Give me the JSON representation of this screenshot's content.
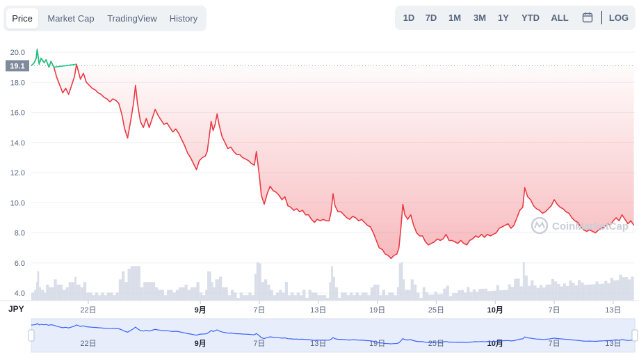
{
  "tabs": [
    {
      "label": "Price",
      "active": true
    },
    {
      "label": "Market Cap",
      "active": false
    },
    {
      "label": "TradingView",
      "active": false
    },
    {
      "label": "History",
      "active": false
    }
  ],
  "ranges": [
    "1D",
    "7D",
    "1M",
    "3M",
    "1Y",
    "YTD",
    "ALL"
  ],
  "calendar_icon": "calendar-icon",
  "log_label": "LOG",
  "currency_label": "JPY",
  "watermark": "CoinMarketCap",
  "colors": {
    "up": "#16c784",
    "down": "#ea3943",
    "fill_top": "#f6b7ba",
    "volume": "#cfd6e4",
    "navigator_line": "#3861fb",
    "navigator_bg": "#e8edfc"
  },
  "chart_data": {
    "type": "line",
    "open_price": 19.1,
    "y_ticks": [
      4.0,
      6.0,
      8.0,
      10.0,
      12.0,
      14.0,
      16.0,
      18.0,
      20.0
    ],
    "ylim": [
      3.5,
      20.6
    ],
    "x_ticks": [
      {
        "label": "22日",
        "day": 5.8
      },
      {
        "label": "9月",
        "day": 17.2,
        "bold": true
      },
      {
        "label": "7日",
        "day": 23.2
      },
      {
        "label": "13日",
        "day": 29.2
      },
      {
        "label": "19日",
        "day": 35.2
      },
      {
        "label": "25日",
        "day": 41.2
      },
      {
        "label": "10月",
        "day": 47.2,
        "bold": true
      },
      {
        "label": "7日",
        "day": 53.2
      },
      {
        "label": "13日",
        "day": 59.2
      }
    ],
    "xlim": [
      0,
      61.4
    ],
    "series": [
      {
        "values": [
          [
            0.0,
            19.1
          ],
          [
            0.3,
            19.3
          ],
          [
            0.5,
            19.6
          ],
          [
            0.6,
            20.2
          ],
          [
            0.8,
            19.2
          ],
          [
            1.0,
            19.6
          ],
          [
            1.3,
            19.3
          ],
          [
            1.5,
            19.5
          ],
          [
            1.8,
            19.0
          ],
          [
            2.0,
            19.4
          ],
          [
            2.3,
            19.0
          ],
          [
            2.6,
            18.3
          ],
          [
            2.9,
            17.8
          ],
          [
            3.2,
            17.3
          ],
          [
            3.5,
            17.6
          ],
          [
            3.8,
            17.2
          ],
          [
            4.1,
            17.8
          ],
          [
            4.4,
            18.4
          ],
          [
            4.6,
            19.2
          ],
          [
            4.8,
            18.7
          ],
          [
            5.0,
            18.2
          ],
          [
            5.3,
            18.6
          ],
          [
            5.6,
            18.0
          ],
          [
            5.9,
            17.8
          ],
          [
            6.2,
            17.6
          ],
          [
            6.5,
            17.5
          ],
          [
            6.8,
            17.3
          ],
          [
            7.1,
            17.2
          ],
          [
            7.4,
            17.0
          ],
          [
            7.7,
            16.9
          ],
          [
            8.0,
            16.7
          ],
          [
            8.3,
            16.9
          ],
          [
            8.6,
            16.8
          ],
          [
            8.9,
            16.6
          ],
          [
            9.2,
            15.9
          ],
          [
            9.5,
            14.9
          ],
          [
            9.8,
            14.3
          ],
          [
            10.1,
            15.4
          ],
          [
            10.4,
            16.6
          ],
          [
            10.6,
            17.8
          ],
          [
            10.8,
            16.6
          ],
          [
            11.1,
            15.4
          ],
          [
            11.4,
            15.0
          ],
          [
            11.7,
            15.6
          ],
          [
            12.0,
            15.0
          ],
          [
            12.3,
            15.6
          ],
          [
            12.6,
            16.2
          ],
          [
            12.9,
            15.8
          ],
          [
            13.2,
            15.5
          ],
          [
            13.5,
            15.2
          ],
          [
            13.8,
            15.3
          ],
          [
            14.1,
            15.0
          ],
          [
            14.4,
            14.7
          ],
          [
            14.7,
            14.9
          ],
          [
            15.0,
            14.6
          ],
          [
            15.3,
            14.2
          ],
          [
            15.6,
            13.8
          ],
          [
            15.9,
            13.3
          ],
          [
            16.2,
            13.0
          ],
          [
            16.5,
            12.6
          ],
          [
            16.8,
            12.2
          ],
          [
            17.1,
            12.8
          ],
          [
            17.4,
            13.0
          ],
          [
            17.7,
            13.1
          ],
          [
            17.9,
            13.4
          ],
          [
            18.1,
            14.4
          ],
          [
            18.3,
            15.4
          ],
          [
            18.5,
            14.8
          ],
          [
            18.7,
            15.2
          ],
          [
            18.9,
            15.9
          ],
          [
            19.1,
            15.2
          ],
          [
            19.4,
            14.4
          ],
          [
            19.7,
            14.0
          ],
          [
            20.0,
            13.6
          ],
          [
            20.3,
            13.7
          ],
          [
            20.6,
            13.4
          ],
          [
            20.9,
            13.2
          ],
          [
            21.2,
            13.2
          ],
          [
            21.5,
            13.0
          ],
          [
            21.8,
            12.9
          ],
          [
            22.1,
            12.8
          ],
          [
            22.4,
            12.6
          ],
          [
            22.7,
            12.5
          ],
          [
            22.9,
            13.4
          ],
          [
            23.2,
            11.8
          ],
          [
            23.4,
            10.5
          ],
          [
            23.7,
            9.9
          ],
          [
            24.0,
            10.6
          ],
          [
            24.3,
            11.1
          ],
          [
            24.6,
            10.8
          ],
          [
            24.9,
            10.7
          ],
          [
            25.2,
            10.5
          ],
          [
            25.5,
            10.2
          ],
          [
            25.8,
            10.4
          ],
          [
            26.1,
            9.8
          ],
          [
            26.4,
            9.7
          ],
          [
            26.7,
            9.5
          ],
          [
            27.0,
            9.6
          ],
          [
            27.3,
            9.4
          ],
          [
            27.6,
            9.5
          ],
          [
            27.9,
            9.2
          ],
          [
            28.2,
            9.2
          ],
          [
            28.5,
            8.9
          ],
          [
            28.8,
            8.7
          ],
          [
            29.1,
            8.9
          ],
          [
            29.4,
            8.8
          ],
          [
            29.7,
            8.9
          ],
          [
            30.0,
            8.8
          ],
          [
            30.3,
            8.8
          ],
          [
            30.5,
            9.4
          ],
          [
            30.7,
            10.6
          ],
          [
            30.9,
            9.8
          ],
          [
            31.2,
            9.4
          ],
          [
            31.5,
            9.4
          ],
          [
            31.8,
            9.2
          ],
          [
            32.1,
            9.0
          ],
          [
            32.4,
            8.9
          ],
          [
            32.7,
            9.1
          ],
          [
            33.0,
            9.0
          ],
          [
            33.3,
            8.8
          ],
          [
            33.6,
            8.9
          ],
          [
            33.9,
            8.7
          ],
          [
            34.2,
            8.5
          ],
          [
            34.5,
            8.4
          ],
          [
            34.8,
            8.0
          ],
          [
            35.1,
            7.5
          ],
          [
            35.4,
            7.0
          ],
          [
            35.7,
            6.9
          ],
          [
            36.0,
            6.6
          ],
          [
            36.3,
            6.5
          ],
          [
            36.6,
            6.3
          ],
          [
            36.9,
            6.5
          ],
          [
            37.2,
            6.6
          ],
          [
            37.4,
            7.0
          ],
          [
            37.6,
            8.3
          ],
          [
            37.8,
            9.9
          ],
          [
            38.0,
            9.2
          ],
          [
            38.3,
            8.9
          ],
          [
            38.6,
            9.2
          ],
          [
            38.9,
            8.5
          ],
          [
            39.2,
            8.0
          ],
          [
            39.5,
            7.8
          ],
          [
            39.8,
            7.8
          ],
          [
            40.1,
            7.4
          ],
          [
            40.4,
            7.2
          ],
          [
            40.7,
            7.3
          ],
          [
            41.0,
            7.4
          ],
          [
            41.3,
            7.6
          ],
          [
            41.6,
            7.5
          ],
          [
            41.9,
            7.6
          ],
          [
            42.2,
            7.9
          ],
          [
            42.5,
            7.5
          ],
          [
            42.8,
            7.5
          ],
          [
            43.1,
            7.4
          ],
          [
            43.4,
            7.3
          ],
          [
            43.7,
            7.5
          ],
          [
            44.0,
            7.3
          ],
          [
            44.3,
            7.2
          ],
          [
            44.6,
            7.5
          ],
          [
            44.9,
            7.6
          ],
          [
            45.2,
            7.8
          ],
          [
            45.5,
            7.7
          ],
          [
            45.8,
            7.9
          ],
          [
            46.1,
            7.7
          ],
          [
            46.4,
            7.9
          ],
          [
            46.7,
            7.8
          ],
          [
            47.0,
            7.9
          ],
          [
            47.3,
            8.0
          ],
          [
            47.6,
            8.3
          ],
          [
            47.9,
            8.4
          ],
          [
            48.2,
            8.5
          ],
          [
            48.5,
            8.6
          ],
          [
            48.8,
            8.3
          ],
          [
            49.1,
            8.5
          ],
          [
            49.4,
            9.0
          ],
          [
            49.7,
            9.5
          ],
          [
            50.0,
            9.7
          ],
          [
            50.2,
            11.0
          ],
          [
            50.5,
            10.4
          ],
          [
            50.8,
            10.2
          ],
          [
            51.1,
            9.8
          ],
          [
            51.4,
            9.6
          ],
          [
            51.7,
            9.5
          ],
          [
            52.0,
            9.3
          ],
          [
            52.3,
            9.4
          ],
          [
            52.6,
            9.6
          ],
          [
            52.9,
            9.8
          ],
          [
            53.2,
            10.2
          ],
          [
            53.5,
            9.9
          ],
          [
            53.8,
            9.7
          ],
          [
            54.1,
            9.6
          ],
          [
            54.4,
            9.4
          ],
          [
            54.7,
            9.3
          ],
          [
            55.0,
            9.0
          ],
          [
            55.3,
            8.8
          ],
          [
            55.6,
            8.7
          ],
          [
            55.9,
            8.4
          ],
          [
            56.2,
            8.2
          ],
          [
            56.5,
            8.1
          ],
          [
            56.8,
            8.2
          ],
          [
            57.1,
            8.1
          ],
          [
            57.4,
            8.0
          ],
          [
            57.7,
            8.2
          ],
          [
            58.0,
            8.3
          ],
          [
            58.3,
            8.4
          ],
          [
            58.6,
            8.6
          ],
          [
            58.9,
            8.5
          ],
          [
            59.2,
            8.8
          ],
          [
            59.5,
            9.0
          ],
          [
            59.8,
            8.8
          ],
          [
            60.1,
            9.2
          ],
          [
            60.4,
            8.9
          ],
          [
            60.7,
            8.6
          ],
          [
            61.0,
            8.8
          ],
          [
            61.3,
            8.5
          ]
        ]
      }
    ]
  }
}
